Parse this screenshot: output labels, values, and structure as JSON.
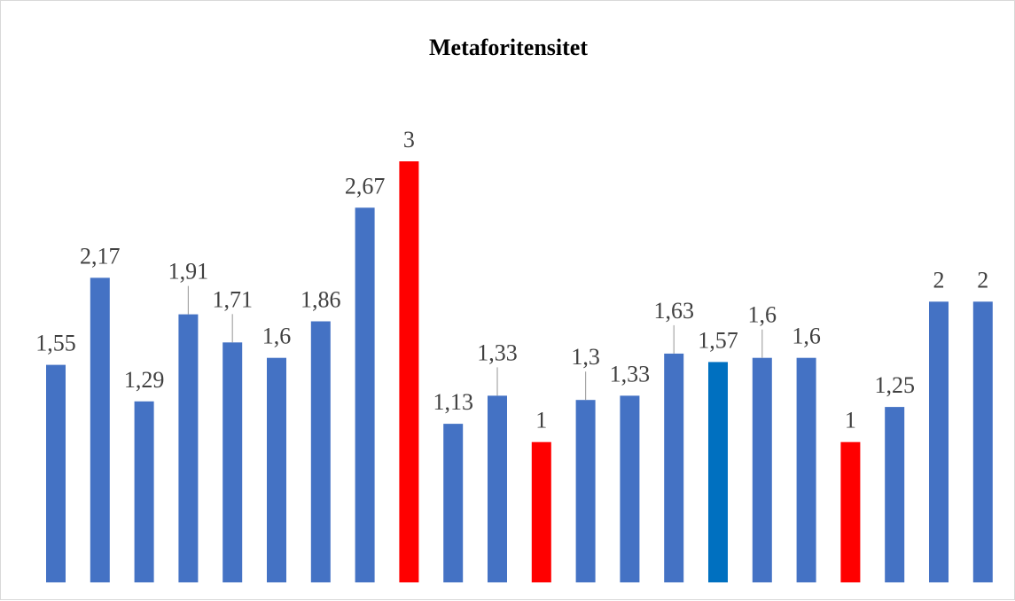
{
  "chart_data": {
    "type": "bar",
    "title": "Metaforitensitet",
    "xlabel": "",
    "ylabel": "",
    "ylim": [
      0,
      3.5
    ],
    "grid": false,
    "legend": "none",
    "values": [
      1.55,
      2.17,
      1.29,
      1.91,
      1.71,
      1.6,
      1.86,
      2.67,
      3,
      1.13,
      1.33,
      1,
      1.3,
      1.33,
      1.63,
      1.57,
      1.6,
      1.6,
      1,
      1.25,
      2,
      2
    ],
    "data_labels": [
      "1,55",
      "2,17",
      "1,29",
      "1,91",
      "1,71",
      "1,6",
      "1,86",
      "2,67",
      "3",
      "1,13",
      "1,33",
      "1",
      "1,3",
      "1,33",
      "1,63",
      "1,57",
      "1,6",
      "1,6",
      "1",
      "1,25",
      "2",
      "2"
    ],
    "bar_colors": [
      "#4472C4",
      "#4472C4",
      "#4472C4",
      "#4472C4",
      "#4472C4",
      "#4472C4",
      "#4472C4",
      "#4472C4",
      "#FF0000",
      "#4472C4",
      "#4472C4",
      "#FF0000",
      "#4472C4",
      "#4472C4",
      "#4472C4",
      "#0070C0",
      "#4472C4",
      "#4472C4",
      "#FF0000",
      "#4472C4",
      "#4472C4",
      "#4472C4"
    ],
    "label_leader_lines": [
      false,
      false,
      false,
      true,
      true,
      false,
      false,
      false,
      false,
      false,
      true,
      false,
      true,
      false,
      true,
      false,
      true,
      false,
      false,
      false,
      false,
      false
    ]
  },
  "colors": {
    "bar": "#4472C4",
    "highlight": "#FF0000",
    "accent": "#0070C0",
    "label_text": "#404040",
    "leader_line": "#A6A6A6",
    "border": "#D9D9D9"
  }
}
